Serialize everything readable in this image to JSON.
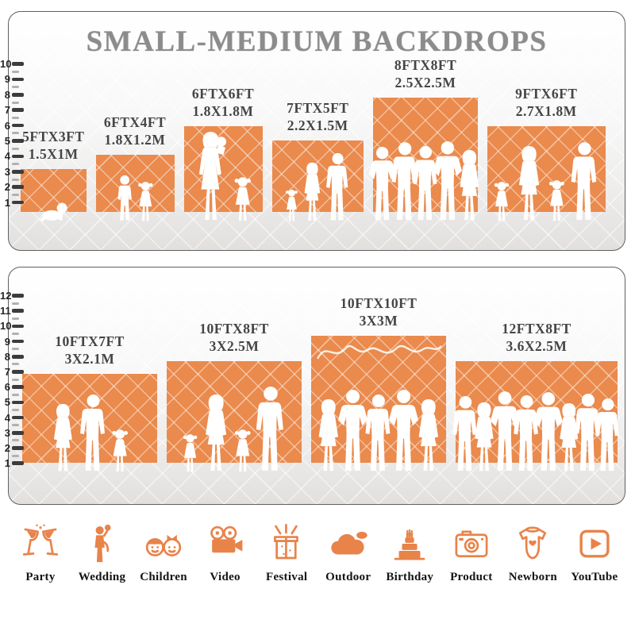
{
  "title": "SMALL-MEDIUM BACKDROPS",
  "colors": {
    "accent": "#E8834A",
    "backdrop_orange": "#EA8A4D",
    "title_gray": "#8C8C8C",
    "silhouette": "#FFFFFF"
  },
  "panel_top": {
    "ruler_marks": [
      "10",
      "9",
      "8",
      "7",
      "6",
      "5",
      "4",
      "3",
      "2",
      "1"
    ],
    "backdrops": [
      {
        "size_ft": "5FTX3FT",
        "size_m": "1.5X1M",
        "w_ft": 5,
        "h_ft": 3,
        "gap": 2,
        "people": [
          {
            "t": "baby",
            "h": 26
          }
        ]
      },
      {
        "size_ft": "6FTX4FT",
        "size_m": "1.8X1.2M",
        "w_ft": 6,
        "h_ft": 4,
        "gap": 4,
        "people": [
          {
            "t": "boy",
            "h": 60
          },
          {
            "t": "girl",
            "h": 52
          }
        ]
      },
      {
        "size_ft": "6FTX6FT",
        "size_m": "1.8X1.8M",
        "w_ft": 6,
        "h_ft": 6,
        "gap": 5,
        "people": [
          {
            "t": "woman-baby",
            "h": 116
          },
          {
            "t": "girl",
            "h": 58
          }
        ]
      },
      {
        "size_ft": "7FTX5FT",
        "size_m": "2.2X1.5M",
        "w_ft": 7,
        "h_ft": 5,
        "gap": 3,
        "people": [
          {
            "t": "girl",
            "h": 42
          },
          {
            "t": "woman",
            "h": 76
          },
          {
            "t": "man",
            "h": 88
          }
        ]
      },
      {
        "size_ft": "8FTX8FT",
        "size_m": "2.5X2.5M",
        "w_ft": 8,
        "h_ft": 8,
        "gap": -9,
        "people": [
          {
            "t": "man2",
            "h": 96
          },
          {
            "t": "man",
            "h": 102
          },
          {
            "t": "man",
            "h": 97
          },
          {
            "t": "man2",
            "h": 103
          },
          {
            "t": "woman",
            "h": 92
          }
        ]
      },
      {
        "size_ft": "9FTX6FT",
        "size_m": "2.7X1.8M",
        "w_ft": 9,
        "h_ft": 6,
        "gap": 6,
        "people": [
          {
            "t": "girl",
            "h": 52
          },
          {
            "t": "woman",
            "h": 97
          },
          {
            "t": "girl",
            "h": 54
          },
          {
            "t": "man",
            "h": 102
          }
        ]
      }
    ]
  },
  "panel_bottom": {
    "ruler_marks": [
      "12",
      "11",
      "10",
      "9",
      "8",
      "7",
      "6",
      "5",
      "4",
      "3",
      "2",
      "1"
    ],
    "backdrops": [
      {
        "size_ft": "10FTX7FT",
        "size_m": "3X2.1M",
        "w_ft": 10,
        "h_ft": 7,
        "gap": 4,
        "people": [
          {
            "t": "woman",
            "h": 88
          },
          {
            "t": "man",
            "h": 100
          },
          {
            "t": "girl",
            "h": 56
          }
        ]
      },
      {
        "size_ft": "10FTX8FT",
        "size_m": "3X2.5M",
        "w_ft": 10,
        "h_ft": 8,
        "gap": 4,
        "people": [
          {
            "t": "girl",
            "h": 50
          },
          {
            "t": "woman",
            "h": 100
          },
          {
            "t": "girl",
            "h": 56
          },
          {
            "t": "man",
            "h": 110
          }
        ]
      },
      {
        "size_ft": "10FTX10FT",
        "size_m": "3X3M",
        "w_ft": 10,
        "h_ft": 10,
        "gap": -6,
        "script": true,
        "people": [
          {
            "t": "woman",
            "h": 94
          },
          {
            "t": "man2",
            "h": 106
          },
          {
            "t": "man",
            "h": 100
          },
          {
            "t": "man2",
            "h": 106
          },
          {
            "t": "woman",
            "h": 94
          }
        ]
      },
      {
        "size_ft": "12FTX8FT",
        "size_m": "3.6X2.5M",
        "w_ft": 12,
        "h_ft": 8,
        "gap": -10,
        "people": [
          {
            "t": "man",
            "h": 98
          },
          {
            "t": "woman",
            "h": 90
          },
          {
            "t": "man2",
            "h": 104
          },
          {
            "t": "man",
            "h": 99
          },
          {
            "t": "man2",
            "h": 103
          },
          {
            "t": "woman",
            "h": 89
          },
          {
            "t": "man",
            "h": 101
          },
          {
            "t": "man",
            "h": 95
          }
        ]
      }
    ]
  },
  "categories": [
    {
      "label": "Party",
      "icon": "party-icon"
    },
    {
      "label": "Wedding",
      "icon": "wedding-icon"
    },
    {
      "label": "Children",
      "icon": "children-icon"
    },
    {
      "label": "Video",
      "icon": "video-icon"
    },
    {
      "label": "Festival",
      "icon": "festival-icon"
    },
    {
      "label": "Outdoor",
      "icon": "outdoor-icon"
    },
    {
      "label": "Birthday",
      "icon": "birthday-icon"
    },
    {
      "label": "Product",
      "icon": "product-icon"
    },
    {
      "label": "Newborn",
      "icon": "newborn-icon"
    },
    {
      "label": "YouTube",
      "icon": "youtube-icon"
    }
  ]
}
